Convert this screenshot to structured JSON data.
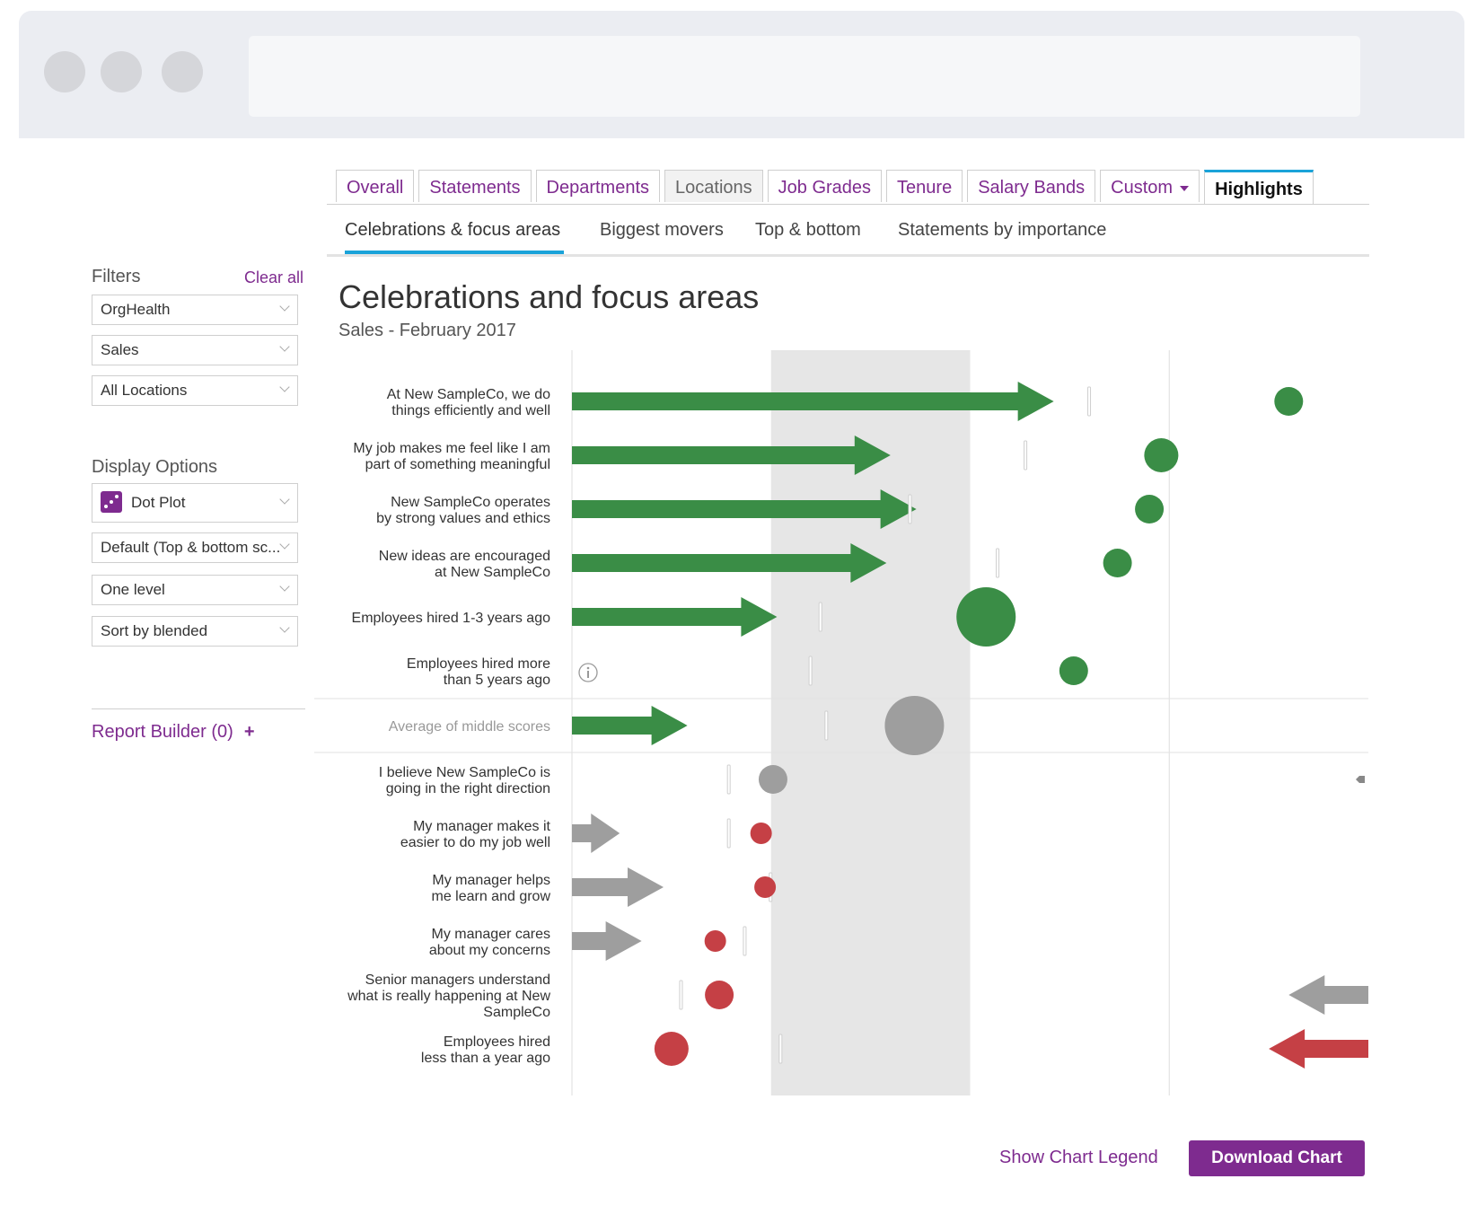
{
  "tabs": [
    {
      "label": "Overall",
      "state": "normal"
    },
    {
      "label": "Statements",
      "state": "normal"
    },
    {
      "label": "Departments",
      "state": "normal"
    },
    {
      "label": "Locations",
      "state": "gray"
    },
    {
      "label": "Job Grades",
      "state": "normal"
    },
    {
      "label": "Tenure",
      "state": "normal"
    },
    {
      "label": "Salary Bands",
      "state": "normal"
    },
    {
      "label": "Custom",
      "state": "dropdown"
    },
    {
      "label": "Highlights",
      "state": "active"
    }
  ],
  "subtabs": [
    {
      "label": "Celebrations & focus areas",
      "active": true
    },
    {
      "label": "Biggest movers",
      "active": false
    },
    {
      "label": "Top & bottom",
      "active": false
    },
    {
      "label": "Statements by importance",
      "active": false
    }
  ],
  "sidebar": {
    "filters_heading": "Filters",
    "clear_all": "Clear all",
    "filters": [
      "OrgHealth",
      "Sales",
      "All Locations"
    ],
    "display_heading": "Display Options",
    "display_options": [
      "Dot Plot",
      "Default (Top & bottom sc...",
      "One level",
      "Sort by blended"
    ],
    "report_builder": "Report Builder (0)",
    "report_builder_plus": "+"
  },
  "page": {
    "title": "Celebrations and focus areas",
    "subtitle": "Sales - February 2017"
  },
  "chart_data": {
    "type": "dot plot with arrows",
    "rows": [
      {
        "label": [
          "At New SampleCo, we do",
          "things efficiently and well"
        ],
        "group": "celebration",
        "arrow": 2.42,
        "marker": 2.6,
        "dot": 3.6,
        "dot_size": "small"
      },
      {
        "label": [
          "My job makes me feel like I am",
          "part of something meaningful"
        ],
        "group": "celebration",
        "arrow": 1.6,
        "marker": 2.28,
        "dot": 2.96,
        "dot_size": "medium"
      },
      {
        "label": [
          "New SampleCo operates",
          "by strong values and ethics"
        ],
        "group": "celebration",
        "arrow": 1.73,
        "marker": 1.7,
        "dot": 2.9,
        "dot_size": "small"
      },
      {
        "label": [
          "New ideas are encouraged",
          "at New SampleCo"
        ],
        "group": "celebration",
        "arrow": 1.58,
        "marker": 2.14,
        "dot": 2.74,
        "dot_size": "small"
      },
      {
        "label": [
          "Employees hired 1-3 years ago"
        ],
        "group": "celebration",
        "arrow": 1.03,
        "marker": 1.25,
        "dot": 2.08,
        "dot_size": "large"
      },
      {
        "label": [
          "Employees hired more",
          "than 5 years ago"
        ],
        "group": "celebration",
        "arrow": 0,
        "marker": 1.2,
        "dot": 2.52,
        "dot_size": "small",
        "info": true
      },
      {
        "label": [
          "Average of middle scores"
        ],
        "group": "average",
        "arrow": 0.58,
        "marker": 1.28,
        "dot": 1.72,
        "dot_size": "large"
      },
      {
        "label": [
          "I believe New SampleCo is",
          "going in the right direction"
        ],
        "group": "focus",
        "arrow": 0,
        "marker": 0.79,
        "dot": 1.01,
        "dot_size": "small",
        "offchart_left": true
      },
      {
        "label": [
          "My manager makes it",
          "easier to do my job well"
        ],
        "group": "focus",
        "arrow_gray": 0.24,
        "marker": 0.79,
        "dot": 0.95,
        "dot_size": "tiny"
      },
      {
        "label": [
          "My manager helps",
          "me learn and grow"
        ],
        "group": "focus",
        "arrow_gray": 0.46,
        "marker": 1.0,
        "dot": 0.97,
        "dot_size": "tiny"
      },
      {
        "label": [
          "My manager cares",
          "about my concerns"
        ],
        "group": "focus",
        "arrow_gray": 0.35,
        "marker": 0.87,
        "dot": 0.72,
        "dot_size": "tiny"
      },
      {
        "label": [
          "Senior managers understand",
          "what is really happening at New",
          "SampleCo"
        ],
        "group": "focus",
        "arrow_left_gray": 3.6,
        "marker": 0.55,
        "dot": 0.74,
        "dot_size": "small"
      },
      {
        "label": [
          "Employees hired",
          "less than a year ago"
        ],
        "group": "focus",
        "arrow_left_red": 3.5,
        "marker": 1.05,
        "dot": 0.5,
        "dot_size": "medium"
      }
    ],
    "x_range": [
      0,
      4
    ],
    "shaded_band": [
      1,
      2
    ],
    "gridlines": [
      3
    ],
    "colors": {
      "celebration": "#3a8d46",
      "focus": "#c54045",
      "neutral": "#9e9e9e",
      "band": "#e6e6e6"
    }
  },
  "footer": {
    "legend_link": "Show Chart Legend",
    "download": "Download Chart"
  }
}
